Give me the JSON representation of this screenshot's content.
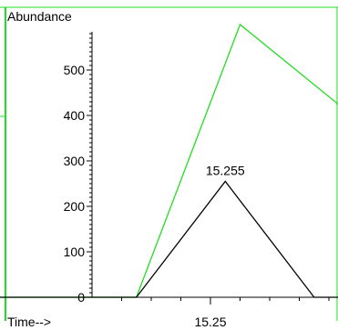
{
  "chart_data": {
    "type": "line",
    "title": "",
    "ylabel": "Abundance",
    "xlabel": "Time-->",
    "y_ticks": [
      0,
      100,
      200,
      300,
      400,
      500
    ],
    "y_tick_labels": [
      "0",
      "100",
      "200",
      "300",
      "400",
      "500"
    ],
    "x_tick_labels": [
      {
        "value": 15.25,
        "label": "15.25"
      }
    ],
    "ylim": [
      0,
      600
    ],
    "xlim": [
      15.1,
      15.4
    ],
    "series": [
      {
        "color": "#22dd22",
        "x": [
          15.1,
          15.225,
          15.26,
          15.295,
          15.33,
          15.4
        ],
        "y": [
          0,
          0,
          600,
          415,
          0,
          0
        ]
      },
      {
        "color": "#000000",
        "x": [
          15.165,
          15.225,
          15.255,
          15.285,
          15.325
        ],
        "y": [
          0,
          0,
          255,
          0,
          0
        ]
      }
    ],
    "annotations": [
      {
        "text": "15.255",
        "x": 15.255,
        "y": 255
      }
    ],
    "colors": {
      "frame": "#22dd22",
      "axis": "#000000"
    }
  }
}
